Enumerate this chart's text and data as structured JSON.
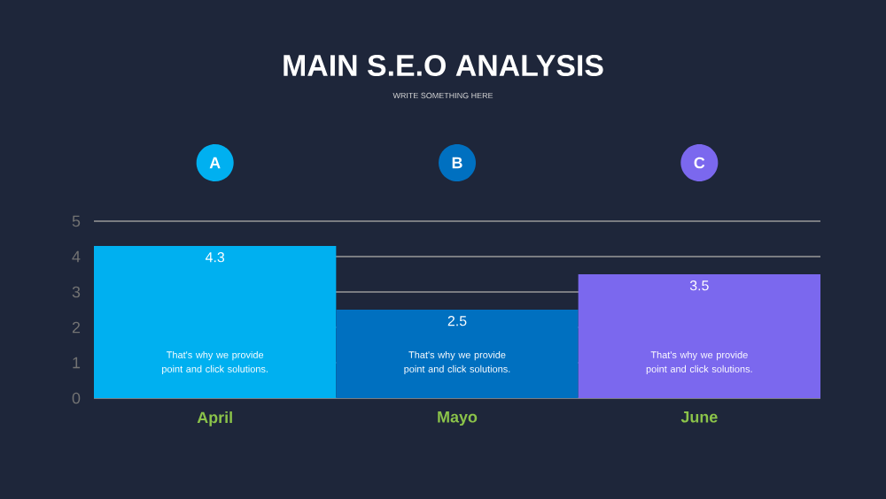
{
  "chart_data": {
    "type": "bar",
    "title": "MAIN S.E.O ANALYSIS",
    "subtitle": "WRITE SOMETHING HERE",
    "categories": [
      "April",
      "Mayo",
      "June"
    ],
    "values": [
      4.3,
      2.5,
      3.5
    ],
    "colors": [
      "#00b0f0",
      "#0070c0",
      "#7b68ee"
    ],
    "ylim": [
      0,
      5
    ],
    "yticks": [
      0,
      1,
      2,
      3,
      4,
      5
    ],
    "grid": "y",
    "data_labels": true,
    "annotations": [
      "A",
      "B",
      "C",
      "That's why we provide point and click solutions.",
      "That's why we provide point and click solutions.",
      "That's why we provide point and click solutions."
    ]
  }
}
